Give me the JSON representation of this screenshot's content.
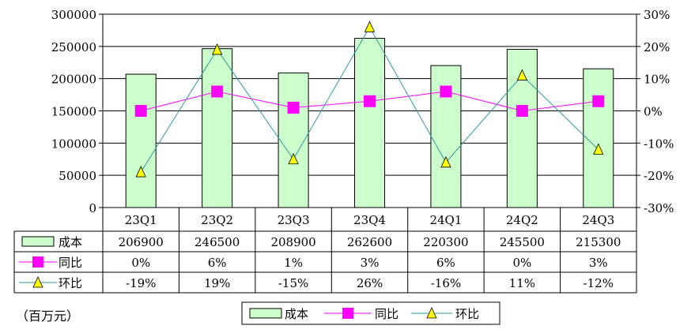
{
  "chart_data": {
    "type": "bar",
    "categories": [
      "23Q1",
      "23Q2",
      "23Q3",
      "23Q4",
      "24Q1",
      "24Q2",
      "24Q3"
    ],
    "y_left": {
      "min": 0,
      "max": 300000,
      "step": 50000,
      "ticks": [
        "300000",
        "250000",
        "200000",
        "150000",
        "100000",
        "50000",
        "0"
      ]
    },
    "y_right": {
      "min": -30,
      "max": 30,
      "step": 10,
      "ticks": [
        "30%",
        "20%",
        "10%",
        "0%",
        "-10%",
        "-20%",
        "-30%"
      ]
    },
    "series": [
      {
        "name": "成本",
        "kind": "bar",
        "axis": "left",
        "color": "#ccffcc",
        "values": [
          206900,
          246500,
          208900,
          262600,
          220300,
          245500,
          215300
        ],
        "labels": [
          "206900",
          "246500",
          "208900",
          "262600",
          "220300",
          "245500",
          "215300"
        ]
      },
      {
        "name": "同比",
        "kind": "line",
        "axis": "right",
        "color": "#ff00ff",
        "marker": "square",
        "values": [
          0,
          6,
          1,
          3,
          6,
          0,
          3
        ],
        "labels": [
          "0%",
          "6%",
          "1%",
          "3%",
          "6%",
          "0%",
          "3%"
        ]
      },
      {
        "name": "环比",
        "kind": "line",
        "axis": "right",
        "color": "#2e9aa0",
        "marker": "triangle",
        "marker_color": "#ffff00",
        "values": [
          -19,
          19,
          -15,
          26,
          -16,
          11,
          -12
        ],
        "labels": [
          "-19%",
          "19%",
          "-15%",
          "26%",
          "-16%",
          "11%",
          "-12%"
        ]
      }
    ],
    "grid": true,
    "legend_position": "bottom-center",
    "unit_note": "（百万元）"
  }
}
